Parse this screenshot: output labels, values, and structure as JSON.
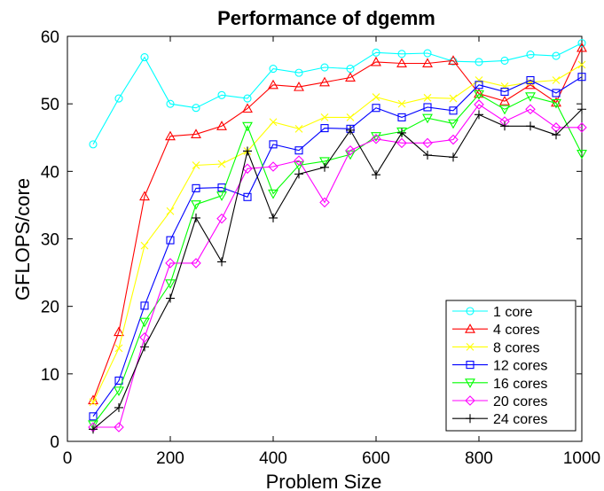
{
  "chart_data": {
    "type": "line",
    "title": "Performance of dgemm",
    "xlabel": "Problem Size",
    "ylabel": "GFLOPS/core",
    "xlim": [
      0,
      1000
    ],
    "ylim": [
      0,
      60
    ],
    "xticks": [
      0,
      200,
      400,
      600,
      800,
      1000
    ],
    "yticks": [
      0,
      10,
      20,
      30,
      40,
      50,
      60
    ],
    "grid": false,
    "legend_position": "bottom-right",
    "x": [
      50,
      100,
      150,
      200,
      250,
      300,
      350,
      400,
      450,
      500,
      550,
      600,
      650,
      700,
      750,
      800,
      850,
      900,
      950,
      1000
    ],
    "series": [
      {
        "name": "1 core",
        "color": "#00ffff",
        "marker": "circle",
        "values": [
          44.0,
          50.8,
          56.9,
          50.0,
          49.4,
          51.3,
          50.8,
          55.2,
          54.6,
          55.4,
          55.2,
          57.6,
          57.4,
          57.5,
          56.3,
          56.2,
          56.4,
          57.3,
          57.1,
          59.0
        ]
      },
      {
        "name": "4 cores",
        "color": "#ff0000",
        "marker": "triangle-up",
        "values": [
          6.1,
          16.2,
          36.3,
          45.2,
          45.5,
          46.7,
          49.3,
          52.8,
          52.5,
          53.2,
          53.9,
          56.2,
          56.0,
          56.0,
          56.4,
          51.5,
          50.4,
          52.8,
          50.2,
          58.3
        ]
      },
      {
        "name": "8 cores",
        "color": "#ffff00",
        "marker": "x",
        "values": [
          5.8,
          13.8,
          29.0,
          34.1,
          40.9,
          41.1,
          43.0,
          47.3,
          46.3,
          48.0,
          48.0,
          51.0,
          50.0,
          50.9,
          50.8,
          53.5,
          52.6,
          53.2,
          53.5,
          55.8
        ]
      },
      {
        "name": "12 cores",
        "color": "#0000ff",
        "marker": "square",
        "values": [
          3.7,
          9.0,
          20.1,
          29.8,
          37.5,
          37.6,
          36.2,
          44.0,
          43.1,
          46.4,
          46.3,
          49.4,
          48.0,
          49.5,
          49.0,
          52.8,
          51.8,
          53.5,
          51.6,
          54.0
        ]
      },
      {
        "name": "16 cores",
        "color": "#00ff00",
        "marker": "triangle-down",
        "values": [
          2.5,
          7.5,
          17.7,
          23.4,
          35.1,
          36.4,
          46.7,
          36.7,
          40.9,
          41.5,
          42.5,
          45.2,
          45.9,
          47.9,
          47.1,
          51.4,
          49.2,
          51.1,
          50.1,
          42.6
        ]
      },
      {
        "name": "20 cores",
        "color": "#ff00ff",
        "marker": "diamond",
        "values": [
          2.1,
          2.1,
          15.4,
          26.4,
          26.4,
          33.0,
          40.4,
          40.7,
          41.6,
          35.4,
          43.1,
          44.8,
          44.2,
          44.2,
          44.7,
          49.9,
          47.4,
          49.2,
          46.5,
          46.5
        ]
      },
      {
        "name": "24 cores",
        "color": "#000000",
        "marker": "plus",
        "values": [
          1.8,
          5.0,
          14.0,
          21.2,
          33.1,
          26.6,
          43.0,
          33.1,
          39.6,
          40.6,
          46.1,
          39.5,
          45.7,
          42.4,
          42.1,
          48.4,
          46.7,
          46.7,
          45.4,
          49.2
        ]
      }
    ]
  }
}
